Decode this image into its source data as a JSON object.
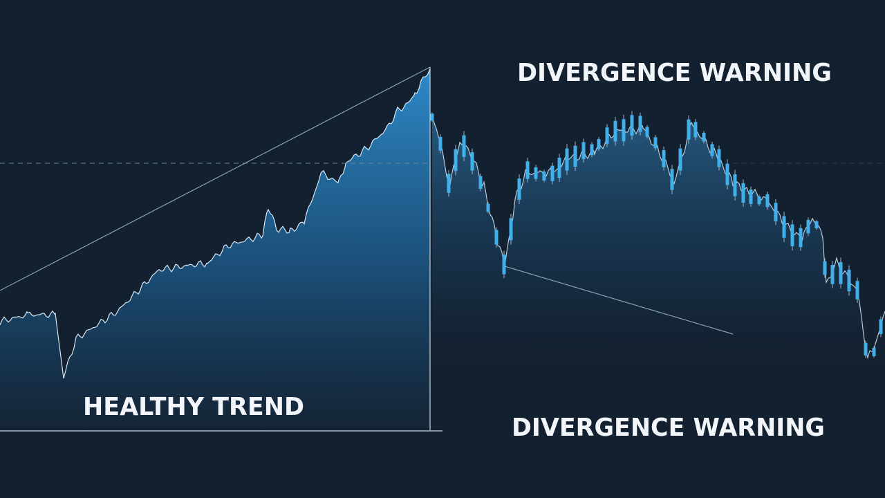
{
  "labels": {
    "left": "HEALTHY TREND",
    "top_right": "DIVERGENCE WARNING",
    "bottom_right": "DIVERGENCE WARNING"
  }
}
